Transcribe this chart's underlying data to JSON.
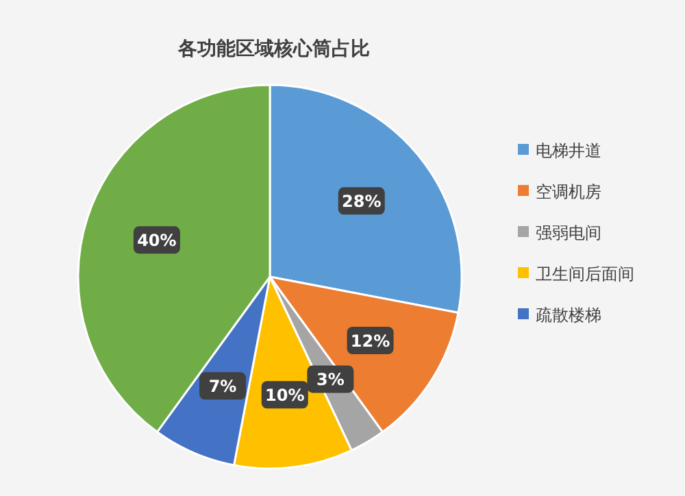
{
  "chart_data": {
    "type": "pie",
    "title": "各功能区域核心筒占比",
    "categories": [
      "电梯井道",
      "空调机房",
      "强弱电间",
      "卫生间后面间",
      "疏散楼梯",
      null
    ],
    "values": [
      28,
      12,
      3,
      10,
      7,
      40
    ],
    "colors": [
      "#5b9bd5",
      "#ed7d31",
      "#a5a5a5",
      "#ffc000",
      "#4472c4",
      "#70ad47"
    ],
    "value_labels": [
      "28%",
      "12%",
      "3%",
      "10%",
      "7%",
      "40%"
    ],
    "legend": "right"
  }
}
